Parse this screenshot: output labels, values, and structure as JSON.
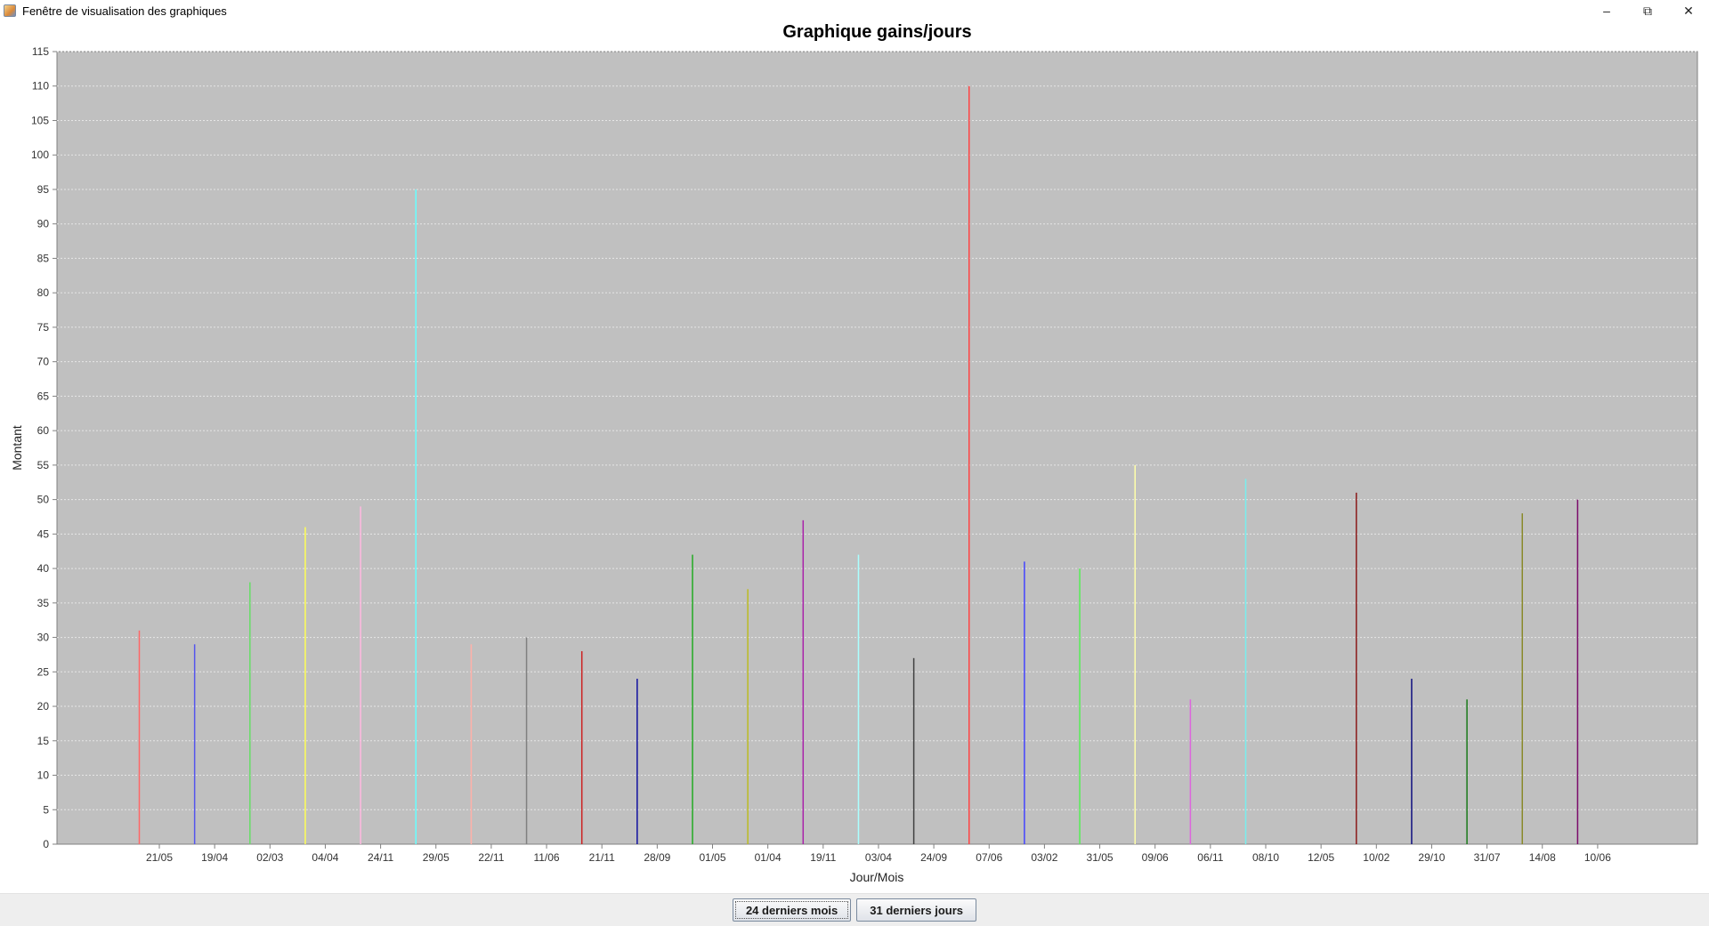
{
  "window": {
    "title": "Fenêtre de visualisation des graphiques",
    "icon": "java-app-icon",
    "controls": {
      "minimize": "–",
      "maximize": "⧉",
      "close": "✕"
    }
  },
  "buttons": {
    "months_label": "24 derniers mois",
    "days_label": "31 derniers jours"
  },
  "colors": {
    "plot_background": "#c0c0c0",
    "gridline": "#e6e6e6"
  },
  "chart_data": {
    "type": "bar",
    "title": "Graphique gains/jours",
    "xlabel": "Jour/Mois",
    "ylabel": "Montant",
    "ylim": [
      0,
      115
    ],
    "ytick_step": 5,
    "grid": true,
    "legend": "none",
    "categories": [
      "21/05",
      "19/04",
      "02/03",
      "04/04",
      "24/11",
      "29/05",
      "22/11",
      "11/06",
      "21/11",
      "28/09",
      "01/05",
      "01/04",
      "19/11",
      "03/04",
      "24/09",
      "07/06",
      "03/02",
      "31/05",
      "09/06",
      "06/11",
      "08/10",
      "12/05",
      "10/02",
      "29/10",
      "31/07",
      "14/08",
      "10/06"
    ],
    "values": [
      31,
      29,
      38,
      46,
      49,
      95,
      29,
      30,
      28,
      24,
      42,
      37,
      47,
      42,
      27,
      110,
      41,
      40,
      55,
      21,
      53,
      0,
      51,
      24,
      21,
      48,
      50
    ],
    "colors": [
      "#ff6666",
      "#5555ee",
      "#66dd66",
      "#ffff55",
      "#ffb8e0",
      "#66ffff",
      "#ffb0a8",
      "#808080",
      "#cc2222",
      "#1010a0",
      "#22aa22",
      "#bbbb22",
      "#aa22aa",
      "#aaffff",
      "#404040",
      "#ff4444",
      "#4444ff",
      "#55ee55",
      "#ffffaa",
      "#dd66dd",
      "#77eeee",
      "#c0c0c0",
      "#8b1a1a",
      "#101080",
      "#1a7a1a",
      "#8a8a2a",
      "#7a0a6a"
    ]
  }
}
